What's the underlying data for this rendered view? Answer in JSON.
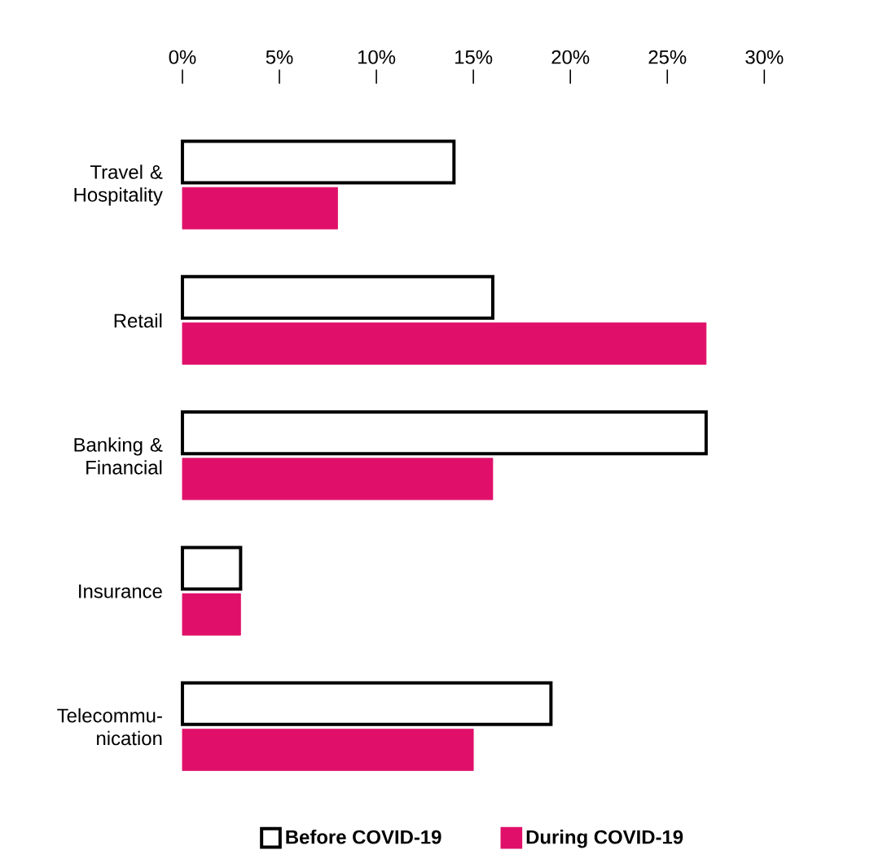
{
  "chart_data": {
    "type": "bar",
    "orientation": "horizontal",
    "categories": [
      "Travel & Hospitality",
      "Retail",
      "Banking & Financial",
      "Insurance",
      "Telecommu-nication"
    ],
    "series": [
      {
        "name": "Before COVID-19",
        "color": "#ffffff",
        "values": [
          14,
          16,
          27,
          3,
          19
        ]
      },
      {
        "name": "During COVID-19",
        "color": "#e0106a",
        "values": [
          8,
          27,
          16,
          3,
          15
        ]
      }
    ],
    "xlim": [
      0,
      30
    ],
    "xticks": [
      {
        "value": 0,
        "label": "0%"
      },
      {
        "value": 5,
        "label": "5%"
      },
      {
        "value": 10,
        "label": "10%"
      },
      {
        "value": 15,
        "label": "15%"
      },
      {
        "value": 20,
        "label": "20%"
      },
      {
        "value": 25,
        "label": "25%"
      },
      {
        "value": 30,
        "label": "30%"
      }
    ],
    "grid": false,
    "legend": "bottom"
  }
}
